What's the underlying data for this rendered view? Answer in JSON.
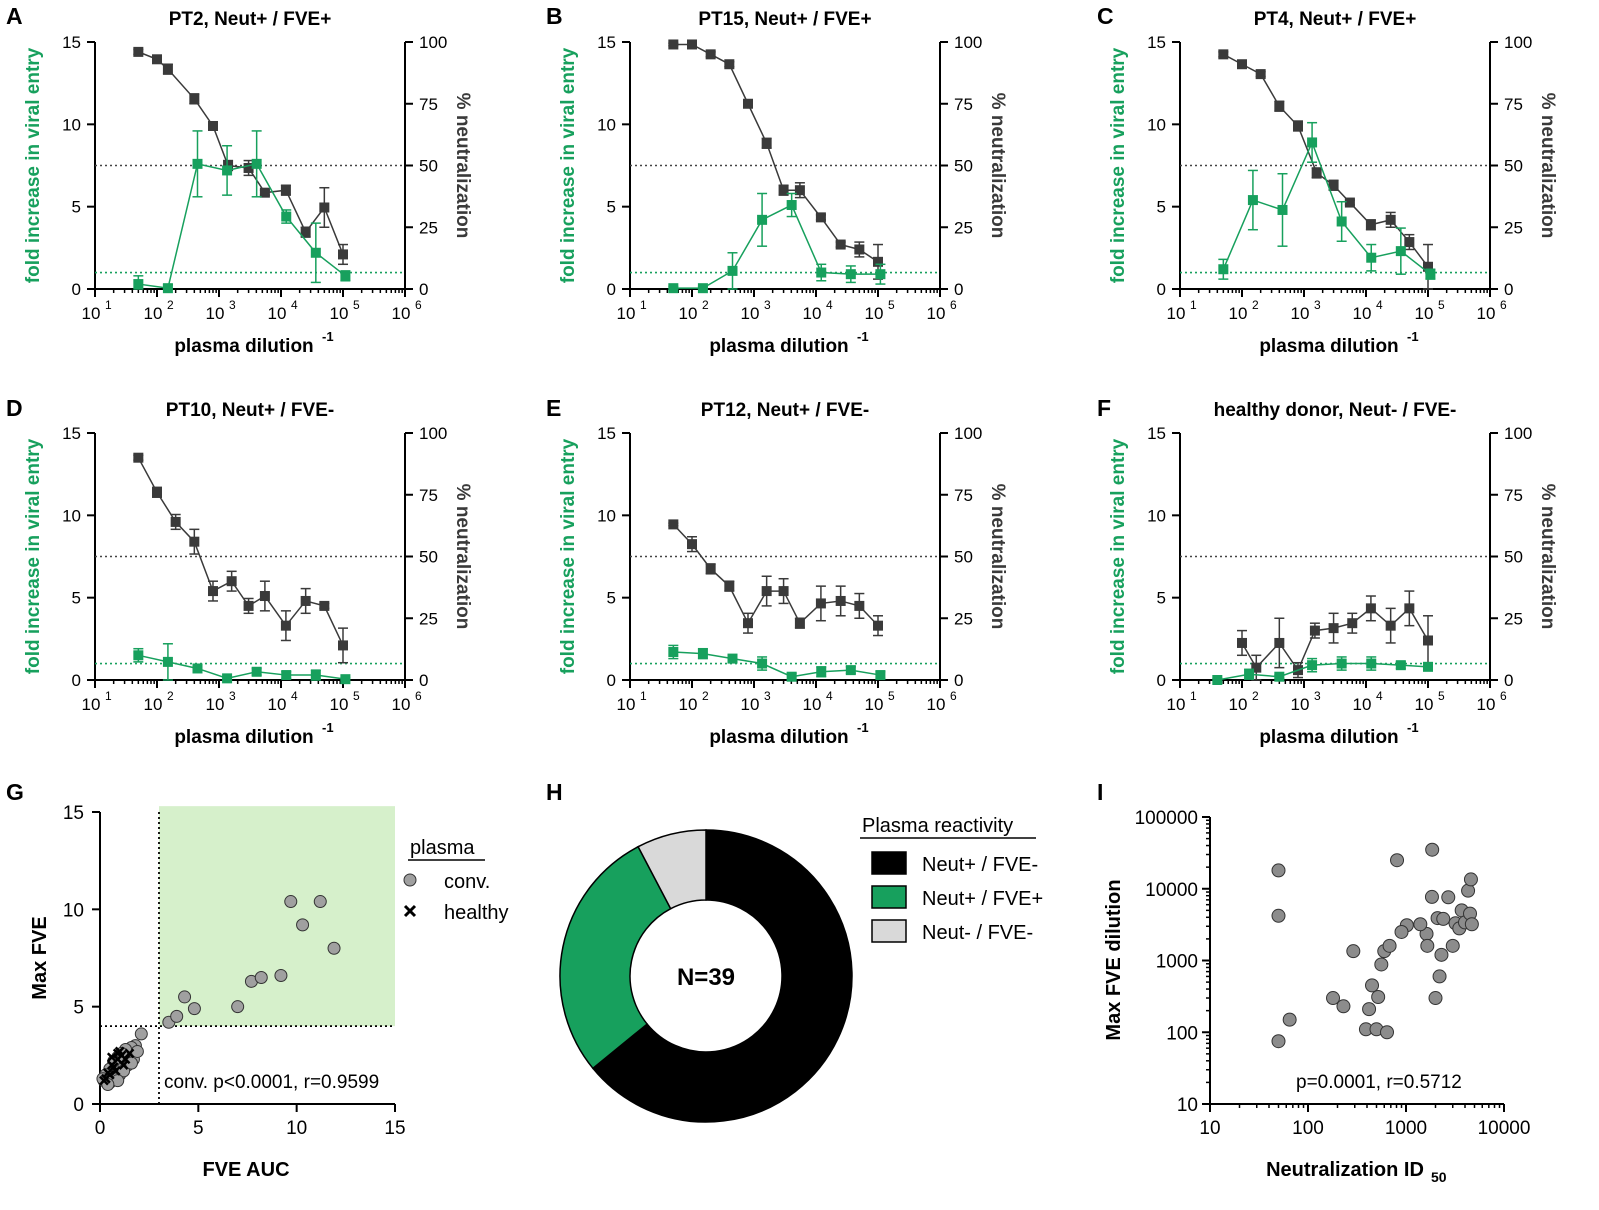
{
  "colors": {
    "green": "#17a05d",
    "dark": "#3a3a3a",
    "green_fill": "#d6f0cb",
    "light_gray": "#d9d9d9"
  },
  "common": {
    "left_axis_label": "fold increase in viral entry",
    "right_axis_label": "% neutralization",
    "x_label": "plasma dilution",
    "x_label_sup": "-1",
    "left_ticks": [
      "0",
      "5",
      "10",
      "15"
    ],
    "right_ticks": [
      "0",
      "25",
      "50",
      "75",
      "100"
    ],
    "x_ticks": [
      {
        "base": "10",
        "exp": "1"
      },
      {
        "base": "10",
        "exp": "2"
      },
      {
        "base": "10",
        "exp": "3"
      },
      {
        "base": "10",
        "exp": "4"
      },
      {
        "base": "10",
        "exp": "5"
      },
      {
        "base": "10",
        "exp": "6"
      }
    ]
  },
  "chart_data": [
    {
      "panel": "A",
      "title": "PT2, Neut+ / FVE+",
      "type": "line",
      "x": [
        50,
        150,
        450,
        1350,
        4050,
        12150,
        36450,
        109350
      ],
      "x_neut": [
        50,
        100,
        150,
        450,
        900,
        1350,
        3000,
        4050,
        6000,
        12150,
        25000,
        50000,
        100000
      ],
      "green": [
        0.3,
        0.05,
        7.6,
        7.2,
        7.6,
        4.4,
        2.2,
        0.8
      ],
      "green_err": [
        0.5,
        0.2,
        2.0,
        1.5,
        2.0,
        0.4,
        1.8,
        0.3
      ],
      "neut": [
        96,
        93,
        89,
        77,
        66,
        50,
        49,
        39,
        40,
        23,
        33,
        14
      ],
      "neut_err": [
        1,
        1,
        2,
        2,
        1,
        2,
        3,
        1,
        2,
        2,
        8,
        4
      ],
      "x_neut_used": [
        50,
        100,
        150,
        400,
        800,
        1400,
        3000,
        5500,
        12000,
        25000,
        50000,
        100000
      ],
      "green_ref": 1,
      "neut_ref": 50,
      "xlim": [
        10,
        1000000
      ],
      "ylim_left": [
        0,
        15
      ],
      "ylim_right": [
        0,
        100
      ]
    },
    {
      "panel": "B",
      "title": "PT15, Neut+ / FVE+",
      "type": "line",
      "x": [
        50,
        150,
        450,
        1350,
        4050,
        12150,
        36450,
        109350
      ],
      "green": [
        0.05,
        0.05,
        1.1,
        4.2,
        5.1,
        1.0,
        0.9,
        0.9
      ],
      "green_err": [
        0.1,
        0.1,
        1.1,
        1.6,
        0.7,
        0.5,
        0.5,
        0.6
      ],
      "x_neut_used": [
        50,
        100,
        200,
        400,
        800,
        1600,
        3000,
        5500,
        12000,
        25000,
        50000,
        100000
      ],
      "neut": [
        99,
        99,
        95,
        91,
        75,
        59,
        40,
        40,
        29,
        18,
        16,
        11
      ],
      "neut_err": [
        0.5,
        0.5,
        1,
        1,
        1,
        2,
        2,
        3,
        1,
        1,
        3,
        7
      ],
      "green_ref": 1,
      "neut_ref": 50,
      "xlim": [
        10,
        1000000
      ],
      "ylim_left": [
        0,
        15
      ],
      "ylim_right": [
        0,
        100
      ]
    },
    {
      "panel": "C",
      "title": "PT4, Neut+ / FVE+",
      "type": "line",
      "x": [
        50,
        150,
        450,
        1350,
        4050,
        12150,
        36450,
        109350
      ],
      "green": [
        1.2,
        5.4,
        4.8,
        8.9,
        4.1,
        1.9,
        2.3,
        0.9
      ],
      "green_err": [
        0.6,
        1.8,
        2.2,
        1.2,
        1.2,
        0.8,
        1.4,
        0.3
      ],
      "x_neut_used": [
        50,
        100,
        200,
        400,
        800,
        1600,
        3000,
        5500,
        12000,
        25000,
        50000,
        100000
      ],
      "neut": [
        95,
        91,
        87,
        74,
        66,
        47,
        42,
        35,
        26,
        28,
        19,
        9
      ],
      "neut_err": [
        1,
        1,
        1,
        2,
        2,
        2,
        2,
        1,
        2,
        3,
        3,
        9
      ],
      "green_ref": 1,
      "neut_ref": 50,
      "xlim": [
        10,
        1000000
      ],
      "ylim_left": [
        0,
        15
      ],
      "ylim_right": [
        0,
        100
      ]
    },
    {
      "panel": "D",
      "title": "PT10, Neut+ / FVE-",
      "type": "line",
      "x": [
        50,
        150,
        450,
        1350,
        4050,
        12150,
        36450,
        109350
      ],
      "green": [
        1.5,
        1.1,
        0.7,
        0.1,
        0.5,
        0.3,
        0.3,
        0.05
      ],
      "green_err": [
        0.4,
        1.1,
        0.2,
        0.1,
        0.2,
        0.2,
        0.3,
        0.1
      ],
      "x_neut_used": [
        50,
        100,
        200,
        400,
        800,
        1600,
        3000,
        5500,
        12000,
        25000,
        50000,
        100000
      ],
      "neut": [
        90,
        76,
        64,
        56,
        36,
        40,
        30,
        34,
        22,
        32,
        30,
        14
      ],
      "neut_err": [
        1,
        2,
        3,
        5,
        4,
        4,
        3,
        6,
        6,
        5,
        1,
        7
      ],
      "green_ref": 1,
      "neut_ref": 50,
      "xlim": [
        10,
        1000000
      ],
      "ylim_left": [
        0,
        15
      ],
      "ylim_right": [
        0,
        100
      ]
    },
    {
      "panel": "E",
      "title": "PT12, Neut+ / FVE-",
      "type": "line",
      "x": [
        50,
        150,
        450,
        1350,
        4050,
        12150,
        36450,
        109350
      ],
      "green": [
        1.7,
        1.6,
        1.3,
        1.0,
        0.2,
        0.5,
        0.6,
        0.3
      ],
      "green_err": [
        0.4,
        0.3,
        0.2,
        0.4,
        0.2,
        0.3,
        0.2,
        0.2
      ],
      "x_neut_used": [
        50,
        100,
        200,
        400,
        800,
        1600,
        3000,
        5500,
        12000,
        25000,
        50000,
        100000
      ],
      "neut": [
        63,
        55,
        45,
        38,
        23,
        36,
        36,
        23,
        31,
        32,
        30,
        22
      ],
      "neut_err": [
        0.5,
        3,
        2,
        2,
        4,
        6,
        5,
        2,
        7,
        6,
        5,
        4
      ],
      "green_ref": 1,
      "neut_ref": 50,
      "xlim": [
        10,
        1000000
      ],
      "ylim_left": [
        0,
        15
      ],
      "ylim_right": [
        0,
        100
      ]
    },
    {
      "panel": "F",
      "title": "healthy donor, Neut- / FVE-",
      "type": "line",
      "x": [
        40,
        130,
        400,
        1350,
        4050,
        12150,
        36450,
        100000
      ],
      "green": [
        0.0,
        0.35,
        0.2,
        0.9,
        1.0,
        1.0,
        0.9,
        0.8
      ],
      "green_err": [
        0.1,
        0.3,
        0.1,
        0.4,
        0.4,
        0.4,
        0.2,
        0.2
      ],
      "x_neut_used": [
        100,
        170,
        400,
        800,
        1500,
        3000,
        6000,
        12000,
        25000,
        50000,
        100000
      ],
      "neut": [
        15,
        5,
        15,
        4,
        20,
        21,
        23,
        29,
        22,
        29,
        16
      ],
      "neut_err": [
        5,
        5,
        10,
        3,
        3,
        6,
        4,
        5,
        7,
        7,
        10
      ],
      "green_ref": 1,
      "neut_ref": 50,
      "xlim": [
        10,
        1000000
      ],
      "ylim_left": [
        0,
        15
      ],
      "ylim_right": [
        0,
        100
      ]
    },
    {
      "panel": "G",
      "type": "scatter",
      "xlabel": "FVE AUC",
      "ylabel": "Max FVE",
      "xlim": [
        0,
        15
      ],
      "ylim": [
        0,
        15
      ],
      "x_ticks": [
        "0",
        "5",
        "10",
        "15"
      ],
      "y_ticks": [
        "0",
        "5",
        "10",
        "15"
      ],
      "threshold_x": 3,
      "threshold_y": 4,
      "legend_title": "plasma",
      "legend": [
        {
          "name": "conv.",
          "marker": "circle"
        },
        {
          "name": "healthy",
          "marker": "x"
        }
      ],
      "annotation": "conv. p<0.0001, r=0.9599",
      "conv": [
        [
          3.5,
          4.2
        ],
        [
          3.9,
          4.5
        ],
        [
          4.3,
          5.5
        ],
        [
          4.8,
          4.9
        ],
        [
          7.0,
          5.0
        ],
        [
          7.7,
          6.3
        ],
        [
          8.2,
          6.5
        ],
        [
          9.2,
          6.6
        ],
        [
          9.7,
          10.4
        ],
        [
          10.3,
          9.2
        ],
        [
          11.2,
          10.4
        ],
        [
          11.9,
          8.0
        ],
        [
          2.1,
          3.6
        ],
        [
          1.8,
          3.0
        ],
        [
          1.6,
          2.9
        ],
        [
          1.5,
          2.5
        ],
        [
          1.3,
          2.8
        ],
        [
          1.2,
          2.2
        ],
        [
          1.1,
          2.6
        ],
        [
          1.0,
          2.0
        ],
        [
          0.9,
          2.4
        ],
        [
          0.8,
          1.9
        ],
        [
          0.7,
          2.2
        ],
        [
          0.6,
          1.6
        ],
        [
          0.5,
          1.8
        ],
        [
          0.4,
          1.4
        ],
        [
          0.3,
          1.5
        ],
        [
          0.2,
          1.2
        ],
        [
          0.15,
          1.3
        ],
        [
          1.4,
          2.0
        ],
        [
          1.7,
          2.3
        ],
        [
          1.0,
          1.5
        ],
        [
          0.7,
          1.3
        ],
        [
          0.5,
          1.1
        ],
        [
          1.2,
          1.7
        ],
        [
          1.9,
          2.7
        ],
        [
          1.6,
          2.1
        ],
        [
          0.9,
          1.2
        ],
        [
          0.4,
          1.0
        ]
      ],
      "healthy": [
        [
          0.3,
          1.3
        ],
        [
          0.5,
          1.5
        ],
        [
          0.7,
          1.9
        ],
        [
          0.9,
          2.3
        ],
        [
          1.1,
          2.5
        ],
        [
          1.3,
          2.3
        ],
        [
          0.6,
          2.0
        ],
        [
          0.8,
          1.7
        ],
        [
          1.0,
          2.7
        ],
        [
          0.4,
          1.6
        ],
        [
          1.2,
          2.0
        ],
        [
          1.5,
          2.6
        ],
        [
          0.2,
          1.2
        ],
        [
          0.9,
          2.6
        ],
        [
          0.6,
          2.4
        ]
      ]
    },
    {
      "panel": "H",
      "type": "pie",
      "center_label": "N=39",
      "legend_title": "Plasma reactivity",
      "slices": [
        {
          "name": "Neut+ / FVE-",
          "value": 25,
          "color": "#000000"
        },
        {
          "name": "Neut+ / FVE+",
          "value": 11,
          "color": "#17a05d"
        },
        {
          "name": "Neut- / FVE-",
          "value": 3,
          "color": "#d9d9d9"
        }
      ]
    },
    {
      "panel": "I",
      "type": "scatter",
      "xlabel": "Neutralization ID",
      "xlabel_sub": "50",
      "ylabel": "Max FVE dilution",
      "x_scale": "log",
      "y_scale": "log",
      "xlim": [
        10,
        10000
      ],
      "ylim": [
        10,
        100000
      ],
      "x_ticks": [
        "10",
        "100",
        "1000",
        "10000"
      ],
      "y_ticks": [
        "10",
        "100",
        "1000",
        "10000",
        "100000"
      ],
      "annotation": "p=0.0001, r=0.5712",
      "points": [
        [
          50,
          18000
        ],
        [
          50,
          4200
        ],
        [
          50,
          75
        ],
        [
          65,
          150
        ],
        [
          180,
          300
        ],
        [
          230,
          230
        ],
        [
          290,
          1350
        ],
        [
          390,
          110
        ],
        [
          420,
          210
        ],
        [
          450,
          450
        ],
        [
          500,
          110
        ],
        [
          520,
          310
        ],
        [
          560,
          880
        ],
        [
          600,
          1350
        ],
        [
          640,
          100
        ],
        [
          680,
          1600
        ],
        [
          810,
          25000
        ],
        [
          1020,
          3100
        ],
        [
          1620,
          2350
        ],
        [
          1650,
          1600
        ],
        [
          1840,
          7700
        ],
        [
          1850,
          35000
        ],
        [
          2000,
          300
        ],
        [
          2100,
          3900
        ],
        [
          2200,
          600
        ],
        [
          2400,
          3800
        ],
        [
          2700,
          7600
        ],
        [
          3200,
          3300
        ],
        [
          3500,
          2800
        ],
        [
          3700,
          5000
        ],
        [
          4000,
          3400
        ],
        [
          4300,
          9400
        ],
        [
          4500,
          4500
        ],
        [
          4600,
          13500
        ],
        [
          4700,
          3200
        ],
        [
          3000,
          1600
        ],
        [
          1400,
          3200
        ],
        [
          900,
          2500
        ],
        [
          2300,
          1200
        ]
      ]
    }
  ]
}
